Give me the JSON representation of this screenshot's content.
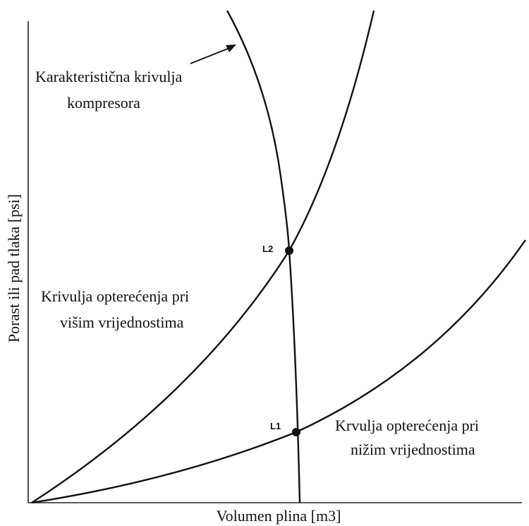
{
  "diagram": {
    "y_axis_label": "Porast ili pad tlaka [psi]",
    "x_axis_label": "Volumen plina [m3]",
    "compressor_label": [
      "Karakteristična krivulja",
      "kompresora"
    ],
    "high_load_label": [
      "Krivulja opterećenja pri",
      "višim vrijednostima"
    ],
    "low_load_label": [
      "Krvulja opterećenja pri",
      "nižim vrijednostima"
    ],
    "points": [
      "L2",
      "L1"
    ]
  }
}
